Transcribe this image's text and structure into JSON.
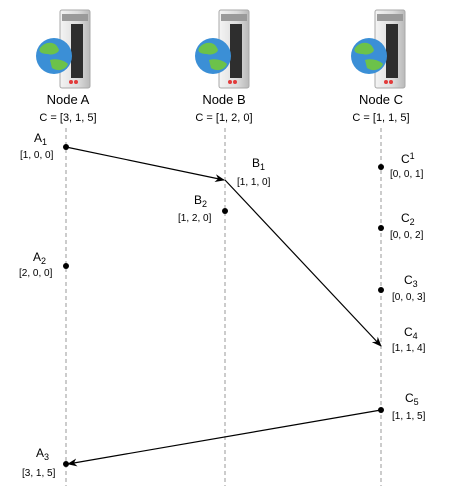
{
  "nodes": [
    {
      "id": "A",
      "label": "Node A",
      "clock": "C = [3, 1, 5]"
    },
    {
      "id": "B",
      "label": "Node B",
      "clock": "C = [1, 2, 0]"
    },
    {
      "id": "C",
      "label": "Node C",
      "clock": "C = [1, 1, 5]"
    }
  ],
  "events": {
    "A1": {
      "name": "A",
      "sub": "1",
      "vec": "[1, 0, 0]"
    },
    "A2": {
      "name": "A",
      "sub": "2",
      "vec": "[2, 0, 0]"
    },
    "A3": {
      "name": "A",
      "sub": "3",
      "vec": "[3, 1, 5]"
    },
    "B1": {
      "name": "B",
      "sub": "1",
      "vec": "[1, 1, 0]"
    },
    "B2": {
      "name": "B",
      "sub": "2",
      "vec": "[1, 2, 0]"
    },
    "C1": {
      "name": "C",
      "sub": "1",
      "vec": "[0, 0, 1]"
    },
    "C2": {
      "name": "C",
      "sub": "2",
      "vec": "[0, 0, 2]"
    },
    "C3": {
      "name": "C",
      "sub": "3",
      "vec": "[0, 0, 3]"
    },
    "C4": {
      "name": "C",
      "sub": "4",
      "vec": "[1, 1, 4]"
    },
    "C5": {
      "name": "C",
      "sub": "5",
      "vec": "[1, 1, 5]"
    }
  },
  "messages": [
    {
      "from": "A1",
      "to": "B1"
    },
    {
      "from": "B1",
      "to": "C4"
    },
    {
      "from": "C5",
      "to": "A3"
    }
  ],
  "icons": {
    "server": "server-globe-icon"
  },
  "colors": {
    "line": "#999999",
    "arrow": "#000000",
    "globe_water": "#3b8fd6",
    "globe_land": "#6cc24a",
    "led": "#e23b3b"
  }
}
